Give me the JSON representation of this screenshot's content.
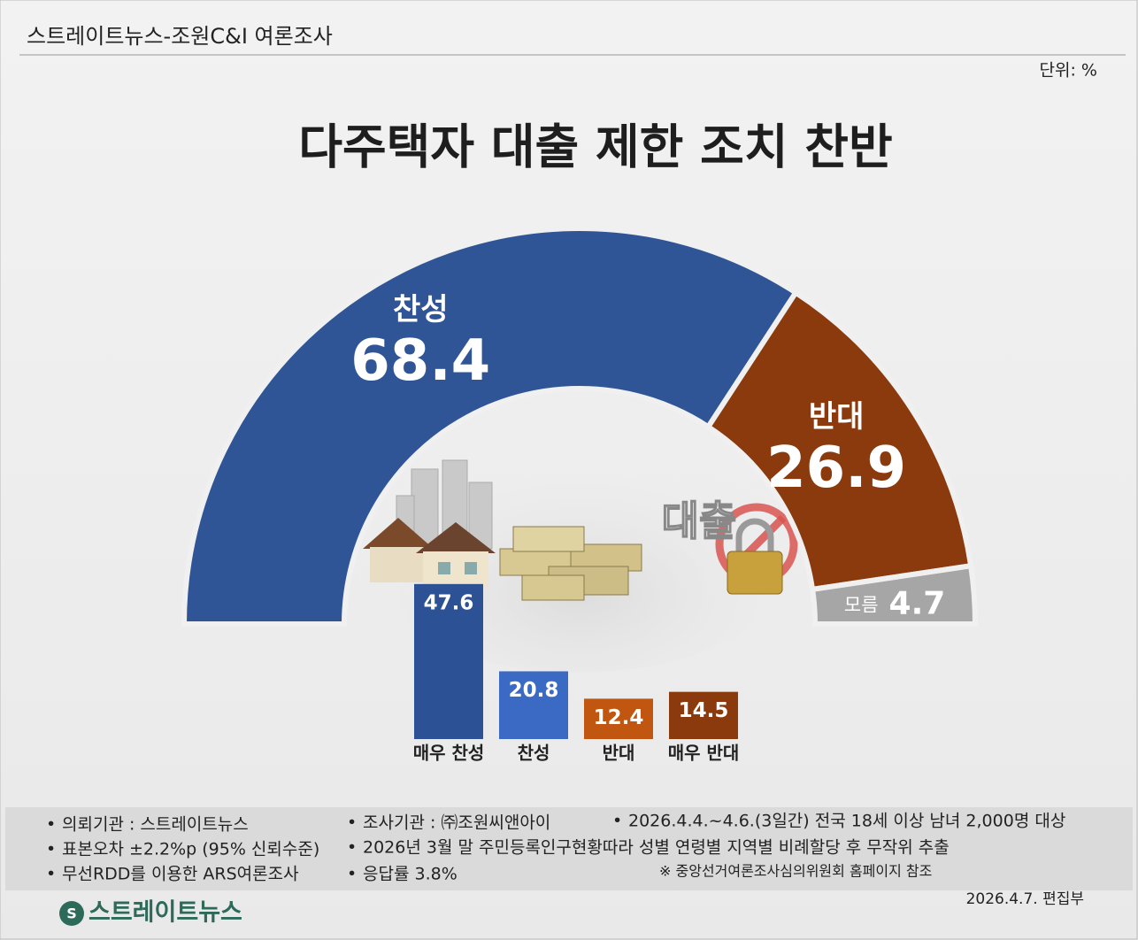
{
  "header": {
    "source": "스트레이트뉴스-조원C&I 여론조사",
    "unit": "단위: %"
  },
  "chart_data": [
    {
      "type": "half-donut",
      "title": "다주택자 대출 제한 조치 찬반",
      "categories": [
        "찬성",
        "반대",
        "모름"
      ],
      "values": [
        68.4,
        26.9,
        4.7
      ],
      "colors": [
        "#2f5597",
        "#8a3a0c",
        "#a6a6a6"
      ],
      "illustration_text": "대출"
    },
    {
      "type": "bar",
      "categories": [
        "매우 찬성",
        "찬성",
        "반대",
        "매우 반대"
      ],
      "values": [
        47.6,
        20.8,
        12.4,
        14.5
      ],
      "colors": [
        "#2c5195",
        "#3a6ac4",
        "#c0560f",
        "#8b3a0e"
      ]
    }
  ],
  "notes": [
    [
      "의뢰기관 : 스트레이트뉴스",
      "조사기관 : ㈜조원씨앤아이",
      "2026.4.4.~4.6.(3일간) 전국 18세 이상 남녀 2,000명 대상"
    ],
    [
      "표본오차 ±2.2%p (95% 신뢰수준)",
      "2026년 3월 말 주민등록인구현황따라 성별 연령별 지역별 비례할당 후 무작위 추출"
    ],
    [
      "무선RDD를 이용한 ARS여론조사",
      "응답률 3.8%",
      "※ 중앙선거여론조사심의위원회 홈페이지 참조"
    ]
  ],
  "footer": {
    "logo": "스트레이트뉴스",
    "date": "2026.4.7.  편집부"
  }
}
